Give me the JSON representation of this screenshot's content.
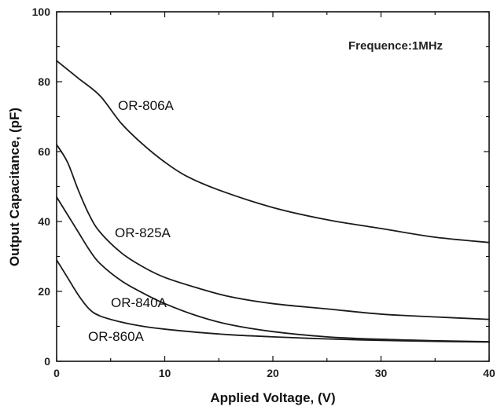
{
  "chart_data": {
    "type": "line",
    "title": "",
    "xlabel": "Applied Voltage, (V)",
    "ylabel": "Output Capacitance, (pF)",
    "xlim": [
      0,
      40
    ],
    "ylim": [
      0,
      100
    ],
    "xticks": [
      "0",
      "10",
      "20",
      "30",
      "40"
    ],
    "yticks": [
      "0",
      "20",
      "40",
      "60",
      "80",
      "100"
    ],
    "grid": false,
    "legend": "none",
    "annotation": "Frequence:1MHz",
    "series": [
      {
        "name": "OR-806A",
        "x": [
          0,
          2,
          4,
          6,
          8,
          10,
          12,
          15,
          20,
          25,
          30,
          35,
          40
        ],
        "y": [
          86,
          81,
          76,
          68,
          62,
          57,
          53,
          49,
          44,
          40.5,
          38,
          35.5,
          34
        ]
      },
      {
        "name": "OR-825A",
        "x": [
          0,
          1,
          2,
          3,
          4,
          6,
          8,
          10,
          13,
          16,
          20,
          25,
          30,
          35,
          40
        ],
        "y": [
          62,
          57,
          49,
          42,
          37,
          31,
          27,
          24,
          21,
          18.5,
          16.5,
          15,
          13.5,
          12.7,
          12
        ]
      },
      {
        "name": "OR-840A",
        "x": [
          0,
          1,
          2,
          3,
          4,
          6,
          8,
          10,
          13,
          16,
          20,
          25,
          30,
          35,
          40
        ],
        "y": [
          47,
          42,
          37,
          32,
          28,
          23,
          19.5,
          16.5,
          13,
          10.5,
          8.5,
          7,
          6.3,
          5.9,
          5.6
        ]
      },
      {
        "name": "OR-860A",
        "x": [
          0,
          1,
          2,
          3,
          4,
          6,
          8,
          10,
          13,
          16,
          20,
          25,
          30,
          35,
          40
        ],
        "y": [
          29,
          24,
          19,
          15,
          13,
          11.2,
          10,
          9.2,
          8.3,
          7.6,
          7,
          6.4,
          6,
          5.7,
          5.5
        ]
      }
    ],
    "line_color": "#1a1a1a"
  }
}
